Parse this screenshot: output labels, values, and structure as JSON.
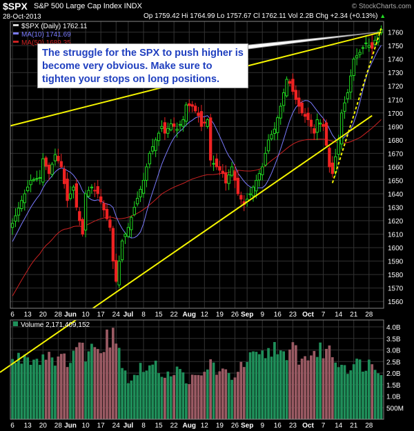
{
  "header": {
    "symbol": "$SPX",
    "description": "S&P 500 Large Cap Index  INDX",
    "source": "© StockCharts.com",
    "date": "28-Oct-2013",
    "quote": "Op 1759.42  Hi 1764.99  Lo 1757.67  Cl 1762.11  Vol 2.2B  Chg +2.34 (+0.13%)",
    "quote_arrow": "▲"
  },
  "annotation": {
    "text": "The struggle for the SPX to push higher is become very obvious. Make sure to tighten your stops on long positions."
  },
  "colors": {
    "up": "#22dd22",
    "down": "#ee2222",
    "ma10": "#7b7bff",
    "ma50": "#cc2222",
    "trend": "#f5f500",
    "vol_up": "#1f8f5a",
    "vol_down": "#9a5a63",
    "grid": "#333333"
  },
  "chart_data": [
    {
      "type": "candlestick",
      "title": "$SPX (Daily) 1762.11",
      "legend": [
        {
          "name": "$SPX (Daily)",
          "value": "1762.11",
          "color": "#dddddd"
        },
        {
          "name": "MA(10)",
          "value": "1741.69",
          "color": "#7b7bff"
        },
        {
          "name": "MA(50)",
          "value": "1689.35",
          "color": "#cc2222"
        }
      ],
      "ylim": [
        1555,
        1768
      ],
      "y_ticks": [
        1560,
        1570,
        1580,
        1590,
        1600,
        1610,
        1620,
        1630,
        1640,
        1650,
        1660,
        1670,
        1680,
        1690,
        1700,
        1710,
        1720,
        1730,
        1740,
        1750,
        1760
      ],
      "x_ticks": [
        "6",
        "13",
        "20",
        "28",
        "Jun",
        "10",
        "17",
        "24",
        "Jul",
        "8",
        "15",
        "22",
        "Aug",
        "12",
        "19",
        "26",
        "Sep",
        "9",
        "16",
        "23",
        "Oct",
        "7",
        "14",
        "21",
        "28"
      ],
      "x_tick_index": [
        0,
        5,
        10,
        15,
        19,
        24,
        29,
        34,
        38,
        43,
        48,
        53,
        58,
        63,
        68,
        73,
        77,
        82,
        87,
        92,
        97,
        102,
        107,
        112,
        117
      ],
      "bar_count": 122,
      "anchors": [
        [
          0,
          1618
        ],
        [
          3,
          1635
        ],
        [
          6,
          1650
        ],
        [
          9,
          1652
        ],
        [
          10,
          1666
        ],
        [
          12,
          1655
        ],
        [
          14,
          1669
        ],
        [
          16,
          1660
        ],
        [
          18,
          1635
        ],
        [
          20,
          1645
        ],
        [
          21,
          1630
        ],
        [
          23,
          1610
        ],
        [
          24,
          1640
        ],
        [
          26,
          1645
        ],
        [
          28,
          1640
        ],
        [
          30,
          1628
        ],
        [
          32,
          1615
        ],
        [
          33,
          1590
        ],
        [
          34,
          1575
        ],
        [
          36,
          1605
        ],
        [
          38,
          1615
        ],
        [
          40,
          1630
        ],
        [
          43,
          1650
        ],
        [
          45,
          1670
        ],
        [
          47,
          1680
        ],
        [
          49,
          1690
        ],
        [
          50,
          1685
        ],
        [
          52,
          1692
        ],
        [
          54,
          1688
        ],
        [
          56,
          1695
        ],
        [
          57,
          1706
        ],
        [
          59,
          1705
        ],
        [
          61,
          1698
        ],
        [
          62,
          1690
        ],
        [
          64,
          1695
        ],
        [
          65,
          1665
        ],
        [
          67,
          1660
        ],
        [
          69,
          1655
        ],
        [
          70,
          1648
        ],
        [
          72,
          1660
        ],
        [
          73,
          1650
        ],
        [
          74,
          1640
        ],
        [
          76,
          1632
        ],
        [
          78,
          1640
        ],
        [
          80,
          1650
        ],
        [
          82,
          1660
        ],
        [
          84,
          1680
        ],
        [
          86,
          1688
        ],
        [
          88,
          1705
        ],
        [
          90,
          1725
        ],
        [
          91,
          1722
        ],
        [
          93,
          1710
        ],
        [
          95,
          1700
        ],
        [
          97,
          1695
        ],
        [
          99,
          1685
        ],
        [
          100,
          1695
        ],
        [
          102,
          1690
        ],
        [
          103,
          1676
        ],
        [
          104,
          1660
        ],
        [
          105,
          1655
        ],
        [
          107,
          1680
        ],
        [
          108,
          1700
        ],
        [
          110,
          1715
        ],
        [
          112,
          1740
        ],
        [
          114,
          1745
        ],
        [
          116,
          1752
        ],
        [
          118,
          1748
        ],
        [
          120,
          1760
        ],
        [
          121,
          1762
        ]
      ],
      "last_bar": {
        "open": 1759.42,
        "high": 1764.99,
        "low": 1757.67,
        "close": 1762.11
      },
      "trendlines": [
        {
          "style": "solid",
          "from": [
            -5,
            1688
          ],
          "to": [
            121,
            1760
          ]
        },
        {
          "style": "solid",
          "from": [
            -5,
            1506
          ],
          "to": [
            118,
            1698
          ]
        },
        {
          "style": "dashed",
          "from": [
            105,
            1648
          ],
          "to": [
            121,
            1763
          ]
        }
      ],
      "pointer_target": [
        121,
        1760
      ]
    },
    {
      "type": "bar",
      "title": "Volume 2,171,409,152",
      "legend": [
        {
          "name": "Volume",
          "value": "2,171,409,152",
          "color": "#1f8f5a"
        }
      ],
      "ylim": [
        0,
        4.3
      ],
      "y_ticks": [
        0.5,
        1.0,
        1.5,
        2.0,
        2.5,
        3.0,
        3.5,
        4.0
      ],
      "y_tick_labels": [
        "500M",
        "1.0B",
        "1.5B",
        "2.0B",
        "2.5B",
        "3.0B",
        "3.5B",
        "4.0B"
      ],
      "x_ticks": [
        "6",
        "13",
        "20",
        "28",
        "Jun",
        "10",
        "17",
        "24",
        "Jul",
        "8",
        "15",
        "22",
        "Aug",
        "12",
        "19",
        "26",
        "Sep",
        "9",
        "16",
        "23",
        "Oct",
        "7",
        "14",
        "21",
        "28"
      ],
      "unit": "billion shares",
      "vol_anchors": [
        [
          0,
          2.5
        ],
        [
          5,
          2.8
        ],
        [
          8,
          2.6
        ],
        [
          12,
          2.9
        ],
        [
          16,
          2.5
        ],
        [
          19,
          2.7
        ],
        [
          21,
          3.2
        ],
        [
          24,
          2.9
        ],
        [
          27,
          3.1
        ],
        [
          30,
          3.4
        ],
        [
          31,
          3.9
        ],
        [
          32,
          3.5
        ],
        [
          33,
          4.1
        ],
        [
          34,
          3.3
        ],
        [
          36,
          2.6
        ],
        [
          38,
          1.7
        ],
        [
          42,
          2.2
        ],
        [
          46,
          2.3
        ],
        [
          50,
          2.0
        ],
        [
          54,
          2.1
        ],
        [
          58,
          1.7
        ],
        [
          62,
          1.8
        ],
        [
          65,
          2.5
        ],
        [
          68,
          2.0
        ],
        [
          72,
          1.9
        ],
        [
          75,
          2.2
        ],
        [
          78,
          2.6
        ],
        [
          82,
          2.7
        ],
        [
          84,
          2.9
        ],
        [
          87,
          3.3
        ],
        [
          90,
          2.3
        ],
        [
          92,
          3.2
        ],
        [
          95,
          2.5
        ],
        [
          98,
          2.9
        ],
        [
          101,
          2.9
        ],
        [
          103,
          3.1
        ],
        [
          106,
          2.6
        ],
        [
          110,
          2.3
        ],
        [
          114,
          2.4
        ],
        [
          118,
          2.4
        ],
        [
          121,
          2.2
        ]
      ]
    }
  ]
}
